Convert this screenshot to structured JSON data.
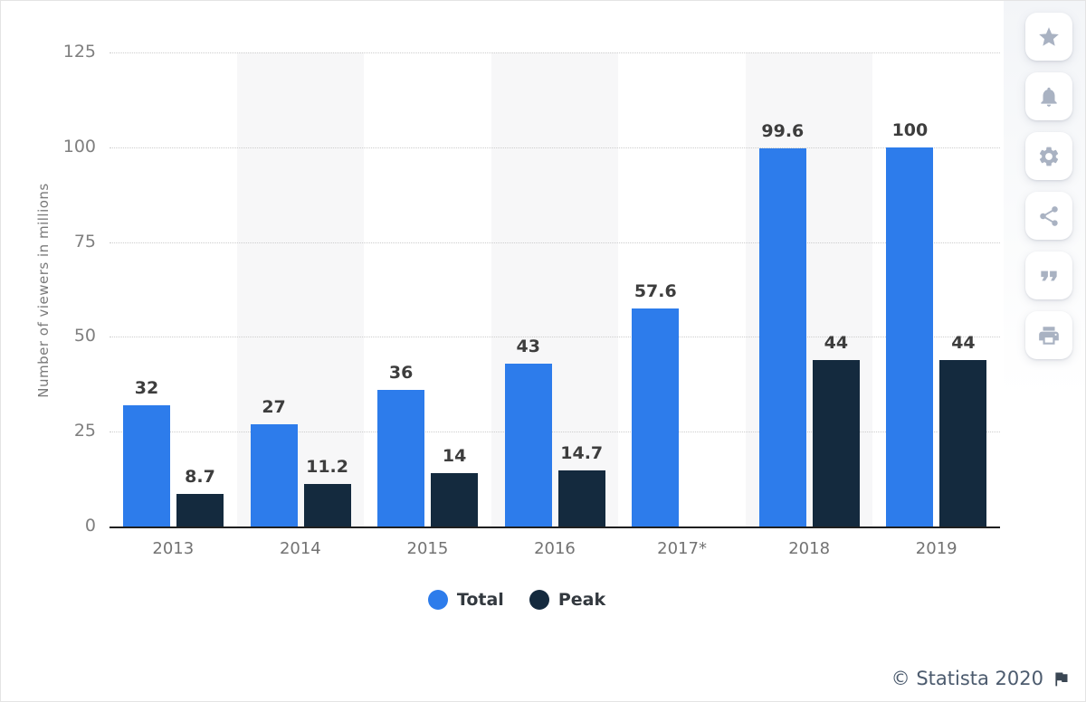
{
  "page": {
    "attribution": {
      "text": "© Statista 2020",
      "flag_icon": "flag-icon",
      "text_color": "#4c5b6e"
    }
  },
  "sidebar": {
    "icon_color": "#a9b2c2",
    "buttons": [
      {
        "name": "favorite",
        "icon": "star-icon"
      },
      {
        "name": "alerts",
        "icon": "bell-icon"
      },
      {
        "name": "settings",
        "icon": "gear-icon"
      },
      {
        "name": "share",
        "icon": "share-icon"
      },
      {
        "name": "cite",
        "icon": "quote-icon"
      },
      {
        "name": "print",
        "icon": "printer-icon"
      }
    ]
  },
  "chart_data": {
    "type": "bar",
    "title": "",
    "xlabel": "",
    "ylabel": "Number of viewers in millions",
    "categories": [
      "2013",
      "2014",
      "2015",
      "2016",
      "2017*",
      "2018",
      "2019"
    ],
    "series": [
      {
        "name": "Total",
        "color": "#2d7ceb",
        "values": [
          32,
          27,
          36,
          43,
          57.6,
          99.6,
          100
        ]
      },
      {
        "name": "Peak",
        "color": "#142a3e",
        "values": [
          8.7,
          11.2,
          14,
          14.7,
          null,
          44,
          44
        ]
      }
    ],
    "ylim": [
      0,
      125
    ],
    "yticks": [
      0,
      25,
      50,
      75,
      100,
      125
    ],
    "grid": "horizontal dotted",
    "column_stripes": "alternating light gray behind 2014, 2016, 2018",
    "legend_position": "bottom center",
    "value_labels": "above bars",
    "colors": {
      "stripe": "#f7f7f8",
      "gridline": "#cdcdcd",
      "axis_line": "#1f1f1f",
      "tick_text": "#7f7f7f",
      "value_text": "#3d3d3d"
    }
  }
}
